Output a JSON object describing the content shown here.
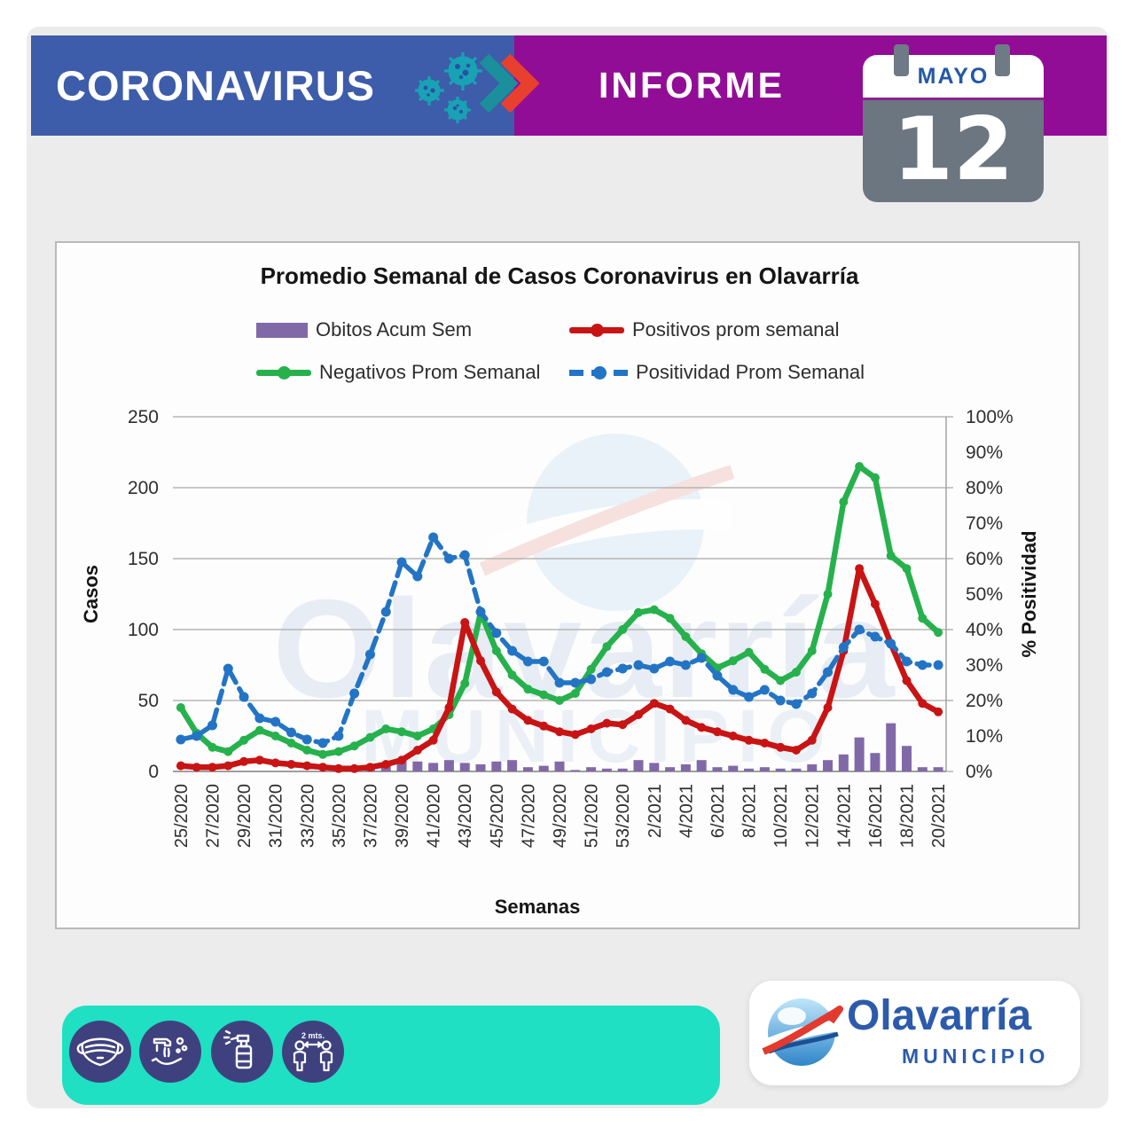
{
  "header": {
    "brand": "CORONAVIRUS",
    "report_label": "INFORME",
    "calendar": {
      "month": "MAYO",
      "day": "12"
    }
  },
  "watermark": {
    "line1": "Olavarría",
    "line2": "MUNICIPIO"
  },
  "chart_data": {
    "type": "combo-bar-line",
    "title": "Promedio Semanal de Casos Coronavirus en Olavarría",
    "xlabel": "Semanas",
    "ylabel_left": "Casos",
    "ylabel_right": "% Positividad",
    "ylim_left": [
      0,
      250
    ],
    "ylim_right_pct": [
      0,
      100
    ],
    "yticks_left": [
      0,
      50,
      100,
      150,
      200,
      250
    ],
    "yticks_right_pct": [
      0,
      10,
      20,
      30,
      40,
      50,
      60,
      70,
      80,
      90,
      100
    ],
    "grid": "horizontal",
    "legend_position": "top",
    "x_tick_labels": [
      "25/2020",
      "27/2020",
      "29/2020",
      "31/2020",
      "33/2020",
      "35/2020",
      "37/2020",
      "39/2020",
      "41/2020",
      "43/2020",
      "45/2020",
      "47/2020",
      "49/2020",
      "51/2020",
      "53/2020",
      "2/2021",
      "4/2021",
      "6/2021",
      "8/2021",
      "10/2021",
      "12/2021",
      "14/2021",
      "16/2021",
      "18/2021",
      "20/2021"
    ],
    "weeks": [
      "25/2020",
      "26/2020",
      "27/2020",
      "28/2020",
      "29/2020",
      "30/2020",
      "31/2020",
      "32/2020",
      "33/2020",
      "34/2020",
      "35/2020",
      "36/2020",
      "37/2020",
      "38/2020",
      "39/2020",
      "40/2020",
      "41/2020",
      "42/2020",
      "43/2020",
      "44/2020",
      "45/2020",
      "46/2020",
      "47/2020",
      "48/2020",
      "49/2020",
      "50/2020",
      "51/2020",
      "52/2020",
      "53/2020",
      "1/2021",
      "2/2021",
      "3/2021",
      "4/2021",
      "5/2021",
      "6/2021",
      "7/2021",
      "8/2021",
      "9/2021",
      "10/2021",
      "11/2021",
      "12/2021",
      "13/2021",
      "14/2021",
      "15/2021",
      "16/2021",
      "17/2021",
      "18/2021",
      "19/2021",
      "20/2021"
    ],
    "series": [
      {
        "name": "Obitos Acum Sem",
        "type": "bar",
        "axis": "left",
        "color": "#8169a8",
        "values": [
          0,
          0,
          0,
          0,
          0,
          0,
          0,
          0,
          0,
          0,
          1,
          3,
          4,
          5,
          8,
          7,
          6,
          8,
          6,
          5,
          7,
          8,
          3,
          4,
          7,
          1,
          3,
          2,
          2,
          8,
          6,
          3,
          5,
          8,
          3,
          4,
          2,
          3,
          2,
          2,
          5,
          8,
          12,
          24,
          13,
          34,
          18,
          3,
          3
        ]
      },
      {
        "name": "Positivos prom semanal",
        "type": "line",
        "axis": "left",
        "color": "#c81414",
        "values": [
          4,
          3,
          3,
          4,
          7,
          8,
          6,
          5,
          4,
          3,
          2,
          2,
          3,
          5,
          8,
          15,
          22,
          45,
          105,
          78,
          56,
          44,
          36,
          32,
          28,
          26,
          30,
          34,
          33,
          40,
          48,
          44,
          36,
          31,
          28,
          25,
          22,
          20,
          17,
          15,
          22,
          45,
          85,
          143,
          118,
          90,
          64,
          48,
          42
        ]
      },
      {
        "name": "Negativos Prom Semanal",
        "type": "line",
        "axis": "left",
        "color": "#26b14c",
        "values": [
          45,
          27,
          17,
          14,
          22,
          29,
          25,
          20,
          15,
          12,
          14,
          18,
          24,
          30,
          28,
          25,
          30,
          40,
          62,
          112,
          85,
          68,
          58,
          54,
          50,
          55,
          72,
          88,
          100,
          112,
          114,
          108,
          95,
          83,
          73,
          78,
          84,
          72,
          64,
          70,
          85,
          125,
          190,
          215,
          207,
          152,
          143,
          108,
          98
        ]
      },
      {
        "name": "Positividad Prom Semanal",
        "type": "line-dashed",
        "axis": "right",
        "color": "#2374c4",
        "values": [
          9,
          10,
          13,
          29,
          21,
          15,
          14,
          11,
          9,
          8,
          10,
          22,
          33,
          45,
          59,
          55,
          66,
          60,
          61,
          45,
          39,
          34,
          31,
          31,
          25,
          25,
          26,
          28,
          29,
          30,
          29,
          31,
          30,
          32,
          27,
          23,
          21,
          23,
          20,
          19,
          22,
          28,
          35,
          40,
          38,
          36,
          31,
          30,
          30
        ]
      }
    ]
  },
  "footer": {
    "icons": [
      {
        "name": "face-mask"
      },
      {
        "name": "hand-washing"
      },
      {
        "name": "disinfectant-spray"
      },
      {
        "name": "social-distance",
        "label": "2 mts."
      }
    ],
    "logo": {
      "name": "Olavarría",
      "subtitle": "MUNICIPIO"
    }
  },
  "colors": {
    "header_blue": "#3d5ca9",
    "header_purple": "#920d96",
    "calendar_gray": "#6b7681",
    "teal_footer": "#1fe0c2",
    "icon_circle_navy": "#3f417f",
    "logo_blue": "#2d5bab",
    "bar_purple": "#8169a8",
    "line_red": "#c81414",
    "line_green": "#26b14c",
    "line_blue": "#2374c4"
  }
}
